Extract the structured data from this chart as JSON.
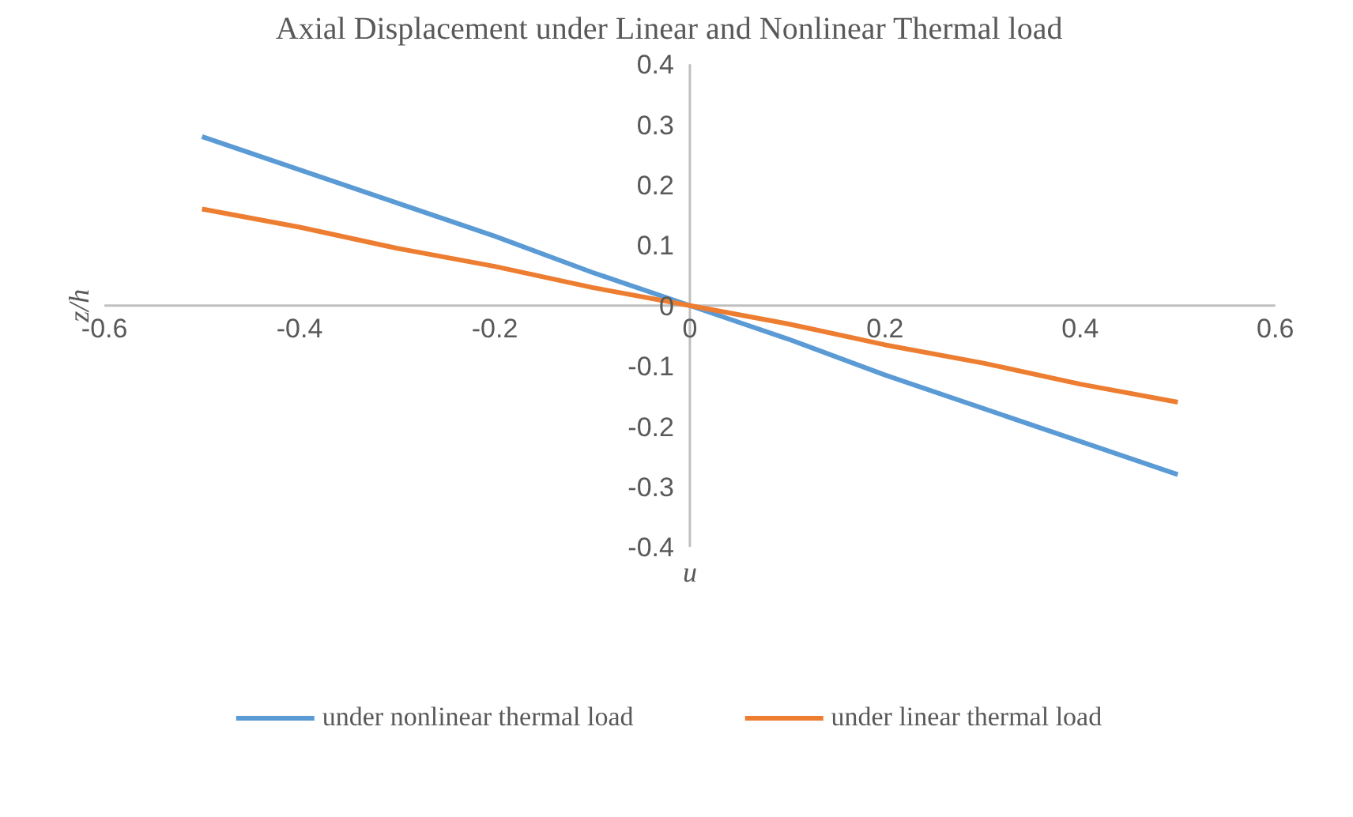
{
  "chart_data": {
    "type": "line",
    "title": "Axial Displacement under Linear and Nonlinear Thermal load",
    "xlabel": "u",
    "ylabel": "z/h",
    "x": [
      -0.5,
      -0.4,
      -0.3,
      -0.2,
      -0.1,
      0,
      0.1,
      0.2,
      0.3,
      0.4,
      0.5
    ],
    "series": [
      {
        "name": "under nonlinear thermal load",
        "color": "#5b9bd5",
        "values": [
          0.28,
          0.225,
          0.17,
          0.115,
          0.055,
          0,
          -0.055,
          -0.115,
          -0.17,
          -0.225,
          -0.28
        ]
      },
      {
        "name": "under linear thermal load",
        "color": "#ed7d31",
        "values": [
          0.16,
          0.13,
          0.095,
          0.065,
          0.03,
          0,
          -0.03,
          -0.065,
          -0.095,
          -0.13,
          -0.16
        ]
      }
    ],
    "xlim": [
      -0.6,
      0.6
    ],
    "xticks": [
      -0.6,
      -0.4,
      -0.2,
      0,
      0.2,
      0.4,
      0.6
    ],
    "ylim": [
      -0.4,
      0.4
    ],
    "yticks": [
      -0.4,
      -0.3,
      -0.2,
      -0.1,
      0,
      0.1,
      0.2,
      0.3,
      0.4
    ],
    "grid": false,
    "legend": "bottom",
    "marker": "none",
    "line_style": "solid"
  }
}
